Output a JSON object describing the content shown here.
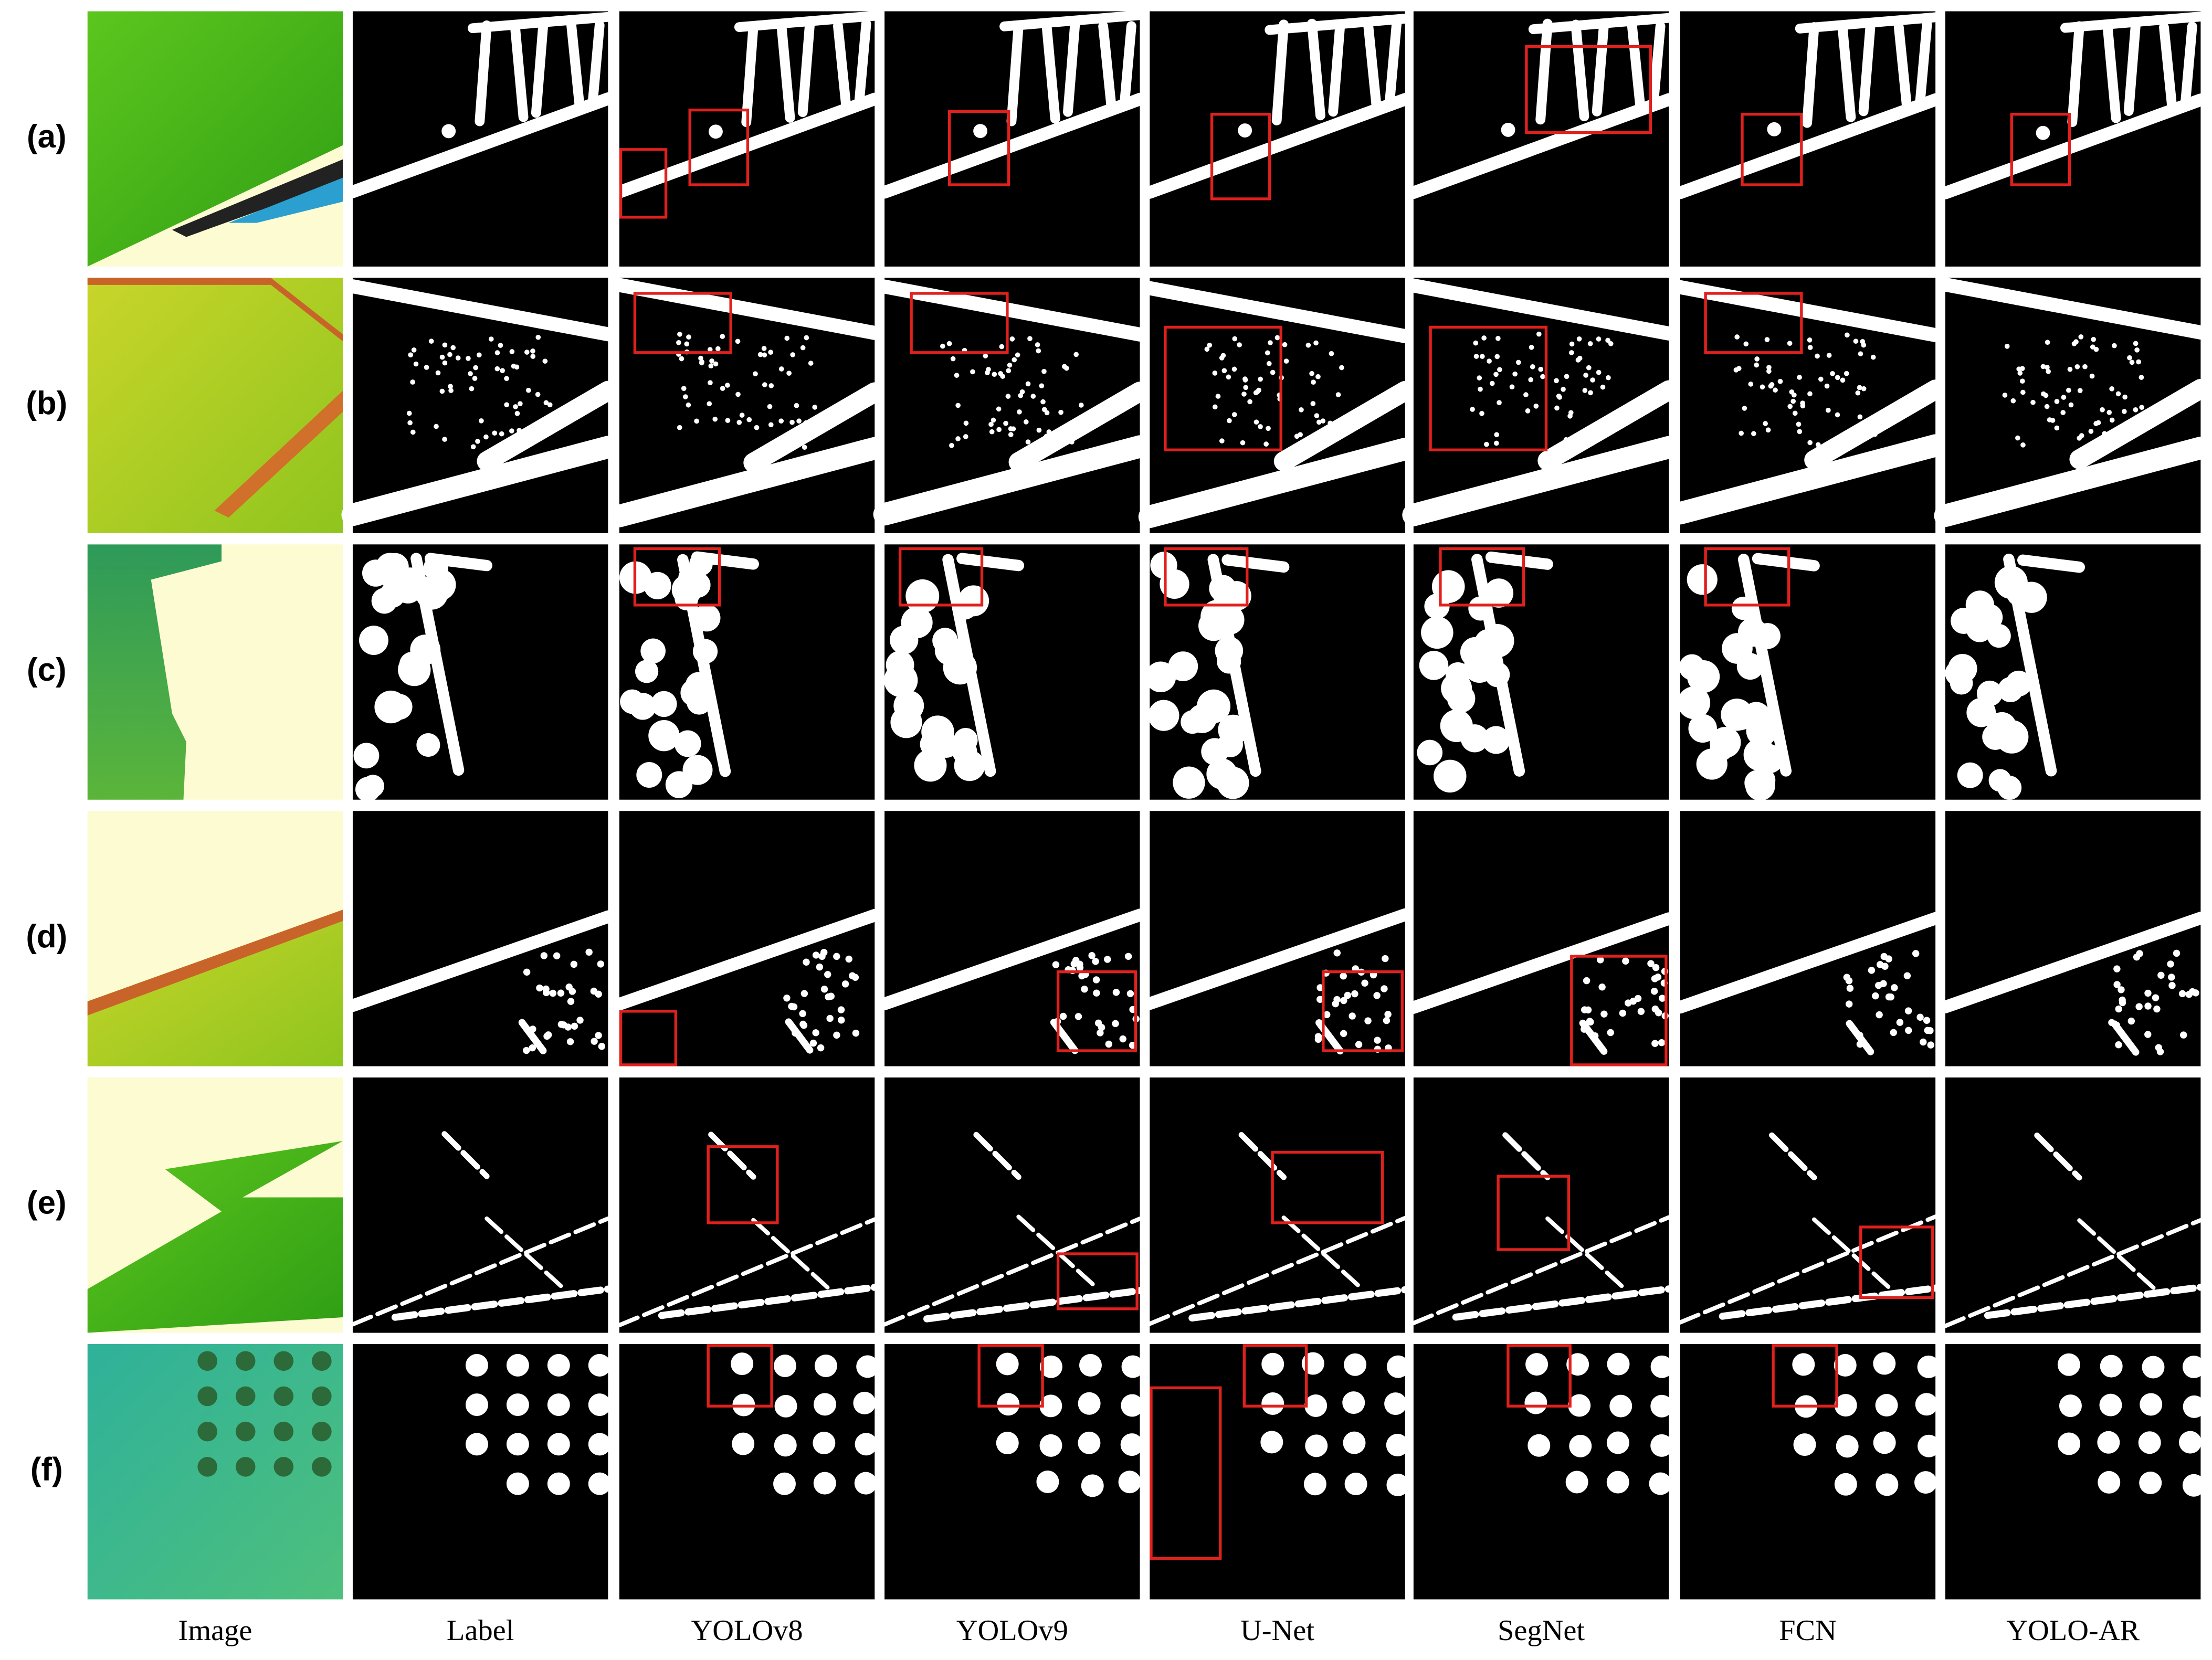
{
  "row_labels": [
    "(a)",
    "(b)",
    "(c)",
    "(d)",
    "(e)",
    "(f)"
  ],
  "column_labels": [
    "Image",
    "Label",
    "YOLOv8",
    "YOLOv9",
    "U-Net",
    "SegNet",
    "FCN",
    "YOLO-AR"
  ]
}
